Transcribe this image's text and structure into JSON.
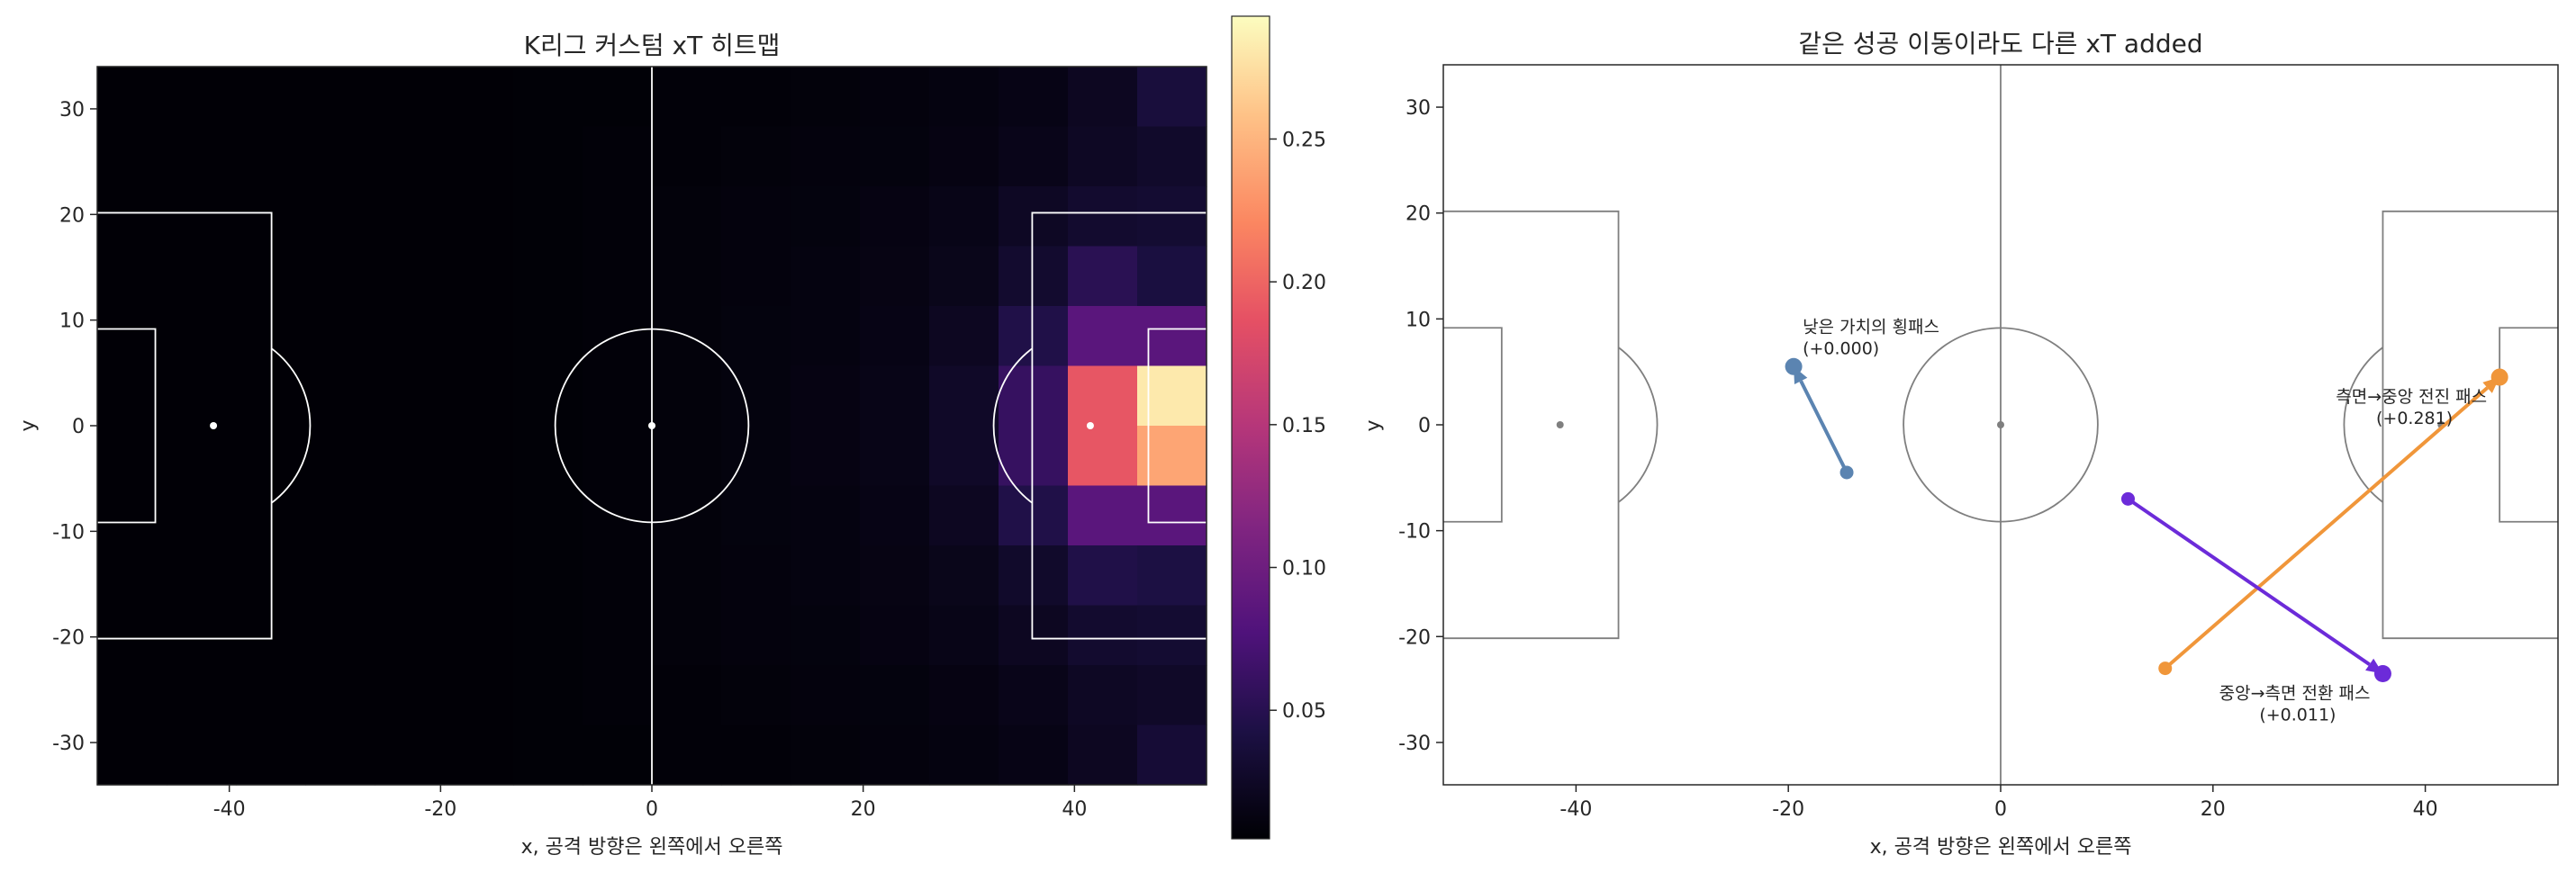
{
  "chart_data": [
    {
      "type": "heatmap",
      "title": "K리그 커스텀 xT 히트맵",
      "xlabel": "x, 공격 방향은 왼쪽에서 오른쪽",
      "ylabel": "y",
      "xlim": [
        -52.5,
        52.5
      ],
      "ylim": [
        -34,
        34
      ],
      "xticks": [
        -40,
        -20,
        0,
        20,
        40
      ],
      "yticks": [
        -30,
        -20,
        -10,
        0,
        10,
        20,
        30
      ],
      "colormap": "magma",
      "color_range": [
        0.005,
        0.293
      ],
      "colorbar_ticks": [
        0.05,
        0.1,
        0.15,
        0.2,
        0.25
      ],
      "grid": false,
      "legend": "none",
      "grid_shape": {
        "columns": 16,
        "rows": 12
      },
      "values_rows_top_to_bottom": [
        [
          0.006,
          0.006,
          0.006,
          0.006,
          0.006,
          0.006,
          0.007,
          0.007,
          0.008,
          0.008,
          0.009,
          0.01,
          0.012,
          0.015,
          0.022,
          0.038
        ],
        [
          0.006,
          0.006,
          0.006,
          0.006,
          0.006,
          0.006,
          0.007,
          0.008,
          0.008,
          0.009,
          0.01,
          0.011,
          0.013,
          0.017,
          0.024,
          0.028
        ],
        [
          0.006,
          0.006,
          0.006,
          0.006,
          0.006,
          0.006,
          0.007,
          0.008,
          0.009,
          0.01,
          0.011,
          0.013,
          0.016,
          0.024,
          0.03,
          0.032
        ],
        [
          0.006,
          0.006,
          0.006,
          0.006,
          0.006,
          0.006,
          0.007,
          0.008,
          0.009,
          0.01,
          0.012,
          0.014,
          0.018,
          0.03,
          0.052,
          0.04
        ],
        [
          0.006,
          0.006,
          0.006,
          0.006,
          0.006,
          0.006,
          0.007,
          0.008,
          0.009,
          0.011,
          0.012,
          0.015,
          0.022,
          0.045,
          0.085,
          0.085
        ],
        [
          0.006,
          0.006,
          0.006,
          0.006,
          0.006,
          0.006,
          0.007,
          0.008,
          0.009,
          0.011,
          0.013,
          0.016,
          0.026,
          0.06,
          0.19,
          0.281
        ],
        [
          0.006,
          0.006,
          0.006,
          0.006,
          0.006,
          0.006,
          0.007,
          0.008,
          0.009,
          0.011,
          0.013,
          0.016,
          0.026,
          0.06,
          0.19,
          0.24
        ],
        [
          0.006,
          0.006,
          0.006,
          0.006,
          0.006,
          0.006,
          0.007,
          0.008,
          0.009,
          0.011,
          0.012,
          0.015,
          0.022,
          0.045,
          0.085,
          0.085
        ],
        [
          0.006,
          0.006,
          0.006,
          0.006,
          0.006,
          0.006,
          0.007,
          0.008,
          0.009,
          0.01,
          0.012,
          0.014,
          0.018,
          0.028,
          0.045,
          0.042
        ],
        [
          0.006,
          0.006,
          0.006,
          0.006,
          0.006,
          0.006,
          0.007,
          0.008,
          0.009,
          0.01,
          0.011,
          0.013,
          0.016,
          0.022,
          0.03,
          0.032
        ],
        [
          0.006,
          0.006,
          0.006,
          0.006,
          0.006,
          0.006,
          0.007,
          0.008,
          0.008,
          0.009,
          0.01,
          0.011,
          0.013,
          0.017,
          0.024,
          0.026
        ],
        [
          0.006,
          0.006,
          0.006,
          0.006,
          0.006,
          0.006,
          0.007,
          0.007,
          0.008,
          0.008,
          0.009,
          0.01,
          0.012,
          0.015,
          0.022,
          0.034
        ]
      ]
    },
    {
      "type": "line",
      "title": "같은 성공 이동이라도 다른 xT added",
      "xlabel": "x, 공격 방향은 왼쪽에서 오른쪽",
      "ylabel": "y",
      "xlim": [
        -52.5,
        52.5
      ],
      "ylim": [
        -34,
        34
      ],
      "xticks": [
        -40,
        -20,
        0,
        20,
        40
      ],
      "yticks": [
        -30,
        -20,
        -10,
        0,
        10,
        20,
        30
      ],
      "grid": false,
      "legend": "none",
      "passes": [
        {
          "label": "낮은 가치의 횡패스",
          "value_label": "(+0.000)",
          "start": [
            -14.5,
            -4.5
          ],
          "end": [
            -19.5,
            5.5
          ],
          "color": "#5b84b1"
        },
        {
          "label": "측면→중앙 전진 패스",
          "value_label": "(+0.281)",
          "start": [
            15.5,
            -23.0
          ],
          "end": [
            47.0,
            4.5
          ],
          "color": "#f0963a"
        },
        {
          "label": "중앙→측면 전환 패스",
          "value_label": "(+0.011)",
          "start": [
            12.0,
            -7.0
          ],
          "end": [
            36.0,
            -23.5
          ],
          "color": "#6c2bd9"
        }
      ]
    }
  ]
}
